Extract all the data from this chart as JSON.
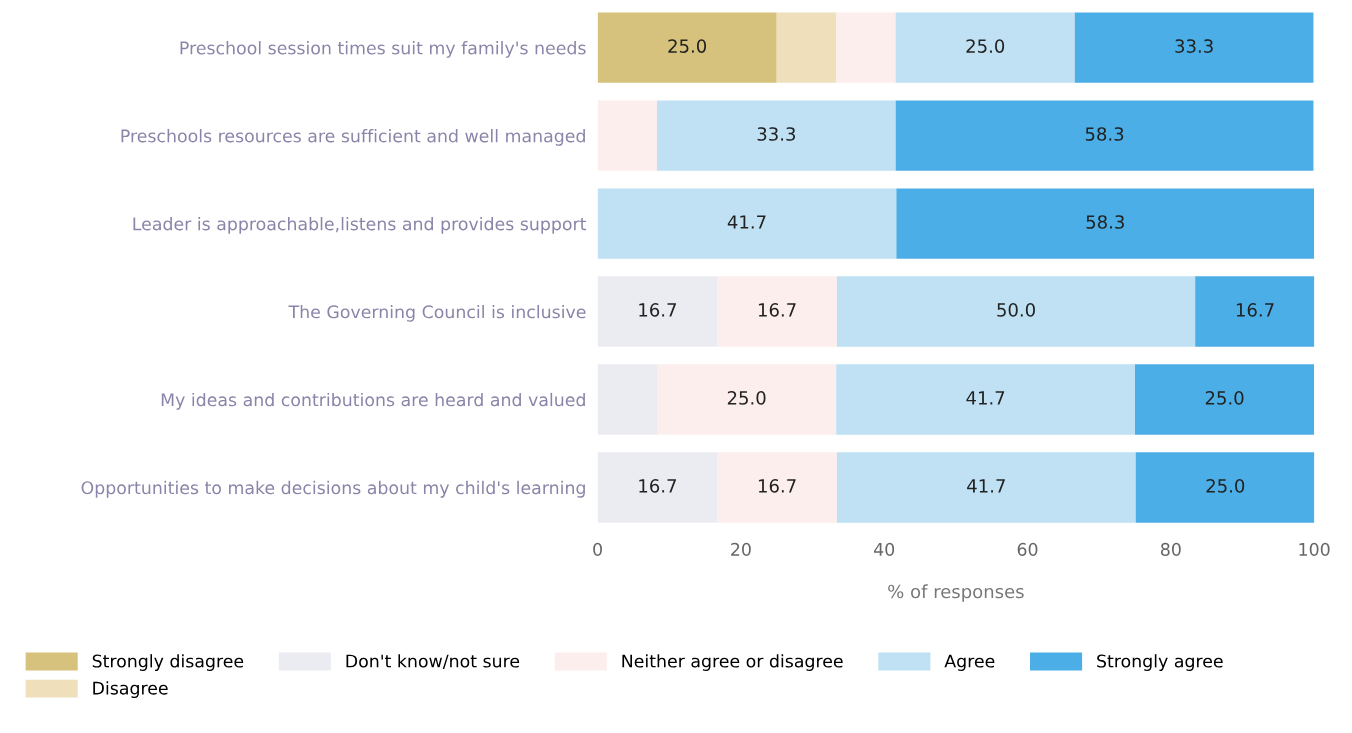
{
  "chart_data": {
    "type": "bar",
    "orientation": "horizontal",
    "stacked": true,
    "xlabel": "% of responses",
    "categories": [
      "Preschool session times suit my family's needs",
      "Preschools resources are sufficient and well managed",
      "Leader is approachable,listens and provides support",
      "The Governing Council is inclusive",
      "My ideas and contributions are heard and valued",
      "Opportunities to make decisions about my child's learning"
    ],
    "series": [
      {
        "name": "Strongly disagree",
        "color": "#d6c27c",
        "values": [
          25.0,
          null,
          null,
          null,
          null,
          null
        ],
        "value_labels": [
          "25.0",
          null,
          null,
          null,
          null,
          null
        ]
      },
      {
        "name": "Disagree",
        "color": "#efe0bb",
        "values": [
          8.3,
          null,
          null,
          null,
          null,
          null
        ],
        "value_labels": [
          null,
          null,
          null,
          null,
          null,
          null
        ]
      },
      {
        "name": "Don't know/not sure",
        "color": "#ebebf2",
        "values": [
          null,
          null,
          null,
          16.7,
          8.3,
          16.7
        ],
        "value_labels": [
          null,
          null,
          null,
          "16.7",
          null,
          "16.7"
        ]
      },
      {
        "name": "Neither agree or disagree",
        "color": "#fbeeec",
        "values": [
          8.3,
          8.3,
          null,
          16.7,
          25.0,
          16.7
        ],
        "value_labels": [
          null,
          null,
          null,
          "16.7",
          "25.0",
          "16.7"
        ]
      },
      {
        "name": "Agree",
        "color": "#bfe1f3",
        "values": [
          25.0,
          33.3,
          41.7,
          50.0,
          41.7,
          41.7
        ],
        "value_labels": [
          "25.0",
          "33.3",
          "41.7",
          "50.0",
          "41.7",
          "41.7"
        ]
      },
      {
        "name": "Strongly agree",
        "color": "#4caee6",
        "values": [
          33.3,
          58.3,
          58.3,
          16.7,
          25.0,
          25.0
        ],
        "value_labels": [
          "33.3",
          "58.3",
          "58.3",
          "16.7",
          "25.0",
          "25.0"
        ]
      }
    ],
    "xlim": [
      0,
      100
    ],
    "xticks": [
      0,
      20,
      40,
      60,
      80,
      100
    ],
    "grid": false,
    "legend": "bottom"
  }
}
